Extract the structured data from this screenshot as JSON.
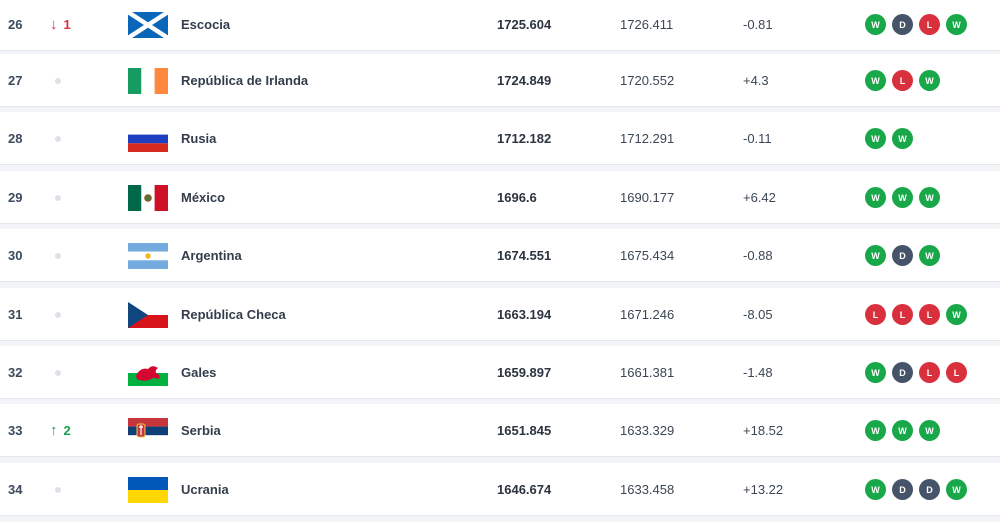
{
  "colors": {
    "win": "#18a84a",
    "draw": "#46546a",
    "loss": "#d9303e",
    "up": "#1aa24a",
    "down": "#d9303e"
  },
  "rows": [
    {
      "rank": "26",
      "move": "down",
      "move_value": "1",
      "flag": "scotland-flag-icon",
      "team": "Escocia",
      "points": "1725.604",
      "previous": "1726.411",
      "change": "-0.81",
      "form": [
        "W",
        "D",
        "L",
        "W"
      ]
    },
    {
      "rank": "27",
      "move": "none",
      "move_value": "",
      "flag": "ireland-flag-icon",
      "team": "República de Irlanda",
      "points": "1724.849",
      "previous": "1720.552",
      "change": "+4.3",
      "form": [
        "W",
        "L",
        "W"
      ]
    },
    {
      "rank": "28",
      "move": "none",
      "move_value": "",
      "flag": "russia-flag-icon",
      "team": "Rusia",
      "points": "1712.182",
      "previous": "1712.291",
      "change": "-0.11",
      "form": [
        "W",
        "W"
      ]
    },
    {
      "rank": "29",
      "move": "none",
      "move_value": "",
      "flag": "mexico-flag-icon",
      "team": "México",
      "points": "1696.6",
      "previous": "1690.177",
      "change": "+6.42",
      "form": [
        "W",
        "W",
        "W"
      ]
    },
    {
      "rank": "30",
      "move": "none",
      "move_value": "",
      "flag": "argentina-flag-icon",
      "team": "Argentina",
      "points": "1674.551",
      "previous": "1675.434",
      "change": "-0.88",
      "form": [
        "W",
        "D",
        "W"
      ]
    },
    {
      "rank": "31",
      "move": "none",
      "move_value": "",
      "flag": "czech-republic-flag-icon",
      "team": "República Checa",
      "points": "1663.194",
      "previous": "1671.246",
      "change": "-8.05",
      "form": [
        "L",
        "L",
        "L",
        "W"
      ]
    },
    {
      "rank": "32",
      "move": "none",
      "move_value": "",
      "flag": "wales-flag-icon",
      "team": "Gales",
      "points": "1659.897",
      "previous": "1661.381",
      "change": "-1.48",
      "form": [
        "W",
        "D",
        "L",
        "L"
      ]
    },
    {
      "rank": "33",
      "move": "up",
      "move_value": "2",
      "flag": "serbia-flag-icon",
      "team": "Serbia",
      "points": "1651.845",
      "previous": "1633.329",
      "change": "+18.52",
      "form": [
        "W",
        "W",
        "W"
      ]
    },
    {
      "rank": "34",
      "move": "none",
      "move_value": "",
      "flag": "ukraine-flag-icon",
      "team": "Ucrania",
      "points": "1646.674",
      "previous": "1633.458",
      "change": "+13.22",
      "form": [
        "W",
        "D",
        "D",
        "W"
      ]
    }
  ]
}
